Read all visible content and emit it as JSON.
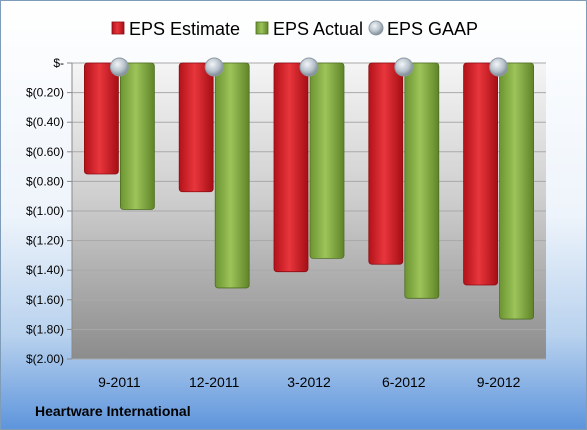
{
  "chart_data": {
    "type": "bar",
    "categories": [
      "9-2011",
      "12-2011",
      "3-2012",
      "6-2012",
      "9-2012"
    ],
    "series": [
      {
        "name": "EPS Estimate",
        "values": [
          -0.75,
          -0.87,
          -1.41,
          -1.36,
          -1.5
        ],
        "color": "#d92027"
      },
      {
        "name": "EPS Actual",
        "values": [
          -0.99,
          -1.52,
          -1.32,
          -1.59,
          -1.73
        ],
        "color": "#8ab34a"
      },
      {
        "name": "EPS GAAP",
        "values": [
          0,
          0,
          0,
          0,
          0
        ],
        "color": "#b8c3cc"
      }
    ],
    "ylim": [
      -2.0,
      0
    ],
    "yticks": [
      0,
      -0.2,
      -0.4,
      -0.6,
      -0.8,
      -1.0,
      -1.2,
      -1.4,
      -1.6,
      -1.8,
      -2.0
    ],
    "ytick_labels": [
      "$-",
      "$(0.20)",
      "$(0.40)",
      "$(0.60)",
      "$(0.80)",
      "$(1.00)",
      "$(1.20)",
      "$(1.40)",
      "$(1.60)",
      "$(1.80)",
      "$(2.00)"
    ],
    "legend_position": "top",
    "grid": true
  },
  "footer": {
    "company": "Heartware International"
  }
}
